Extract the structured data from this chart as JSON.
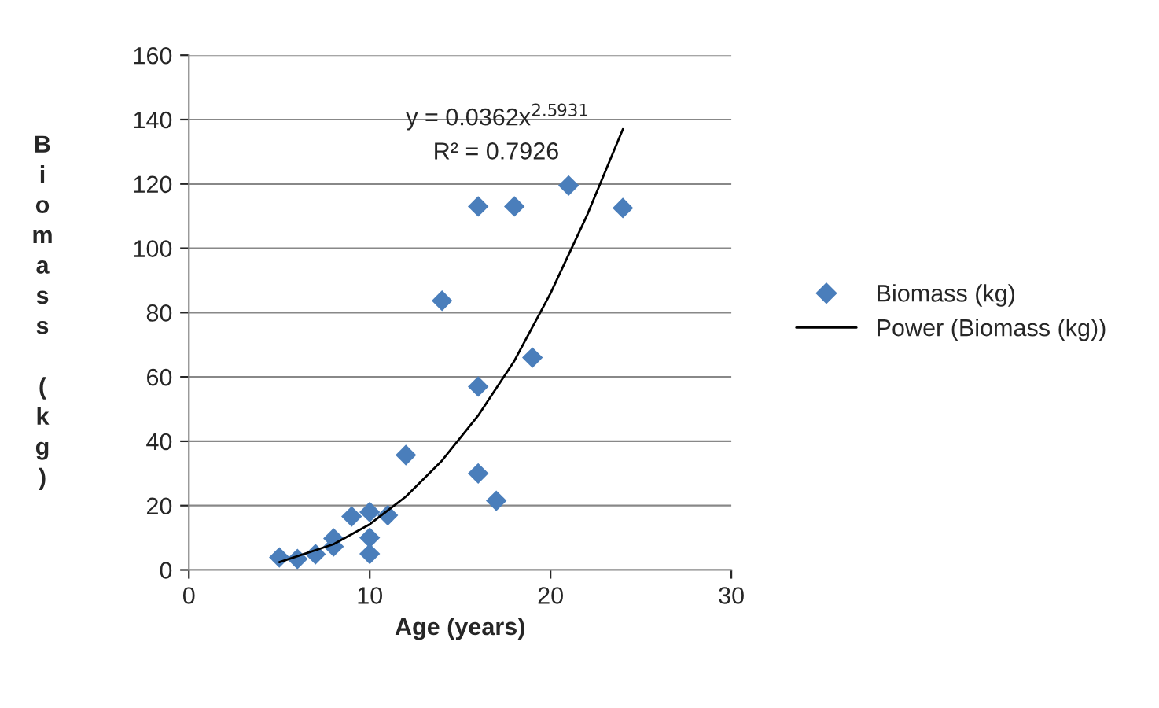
{
  "chart_data": {
    "type": "scatter",
    "xlabel": "Age (years)",
    "ylabel": "Biomass (kg)",
    "xlim": [
      0,
      30
    ],
    "xticks": [
      0,
      10,
      20,
      30
    ],
    "ylim": [
      0,
      160
    ],
    "yticks": [
      0,
      20,
      40,
      60,
      80,
      100,
      120,
      140,
      160
    ],
    "grid": "y",
    "legend": "right",
    "marker": "diamond",
    "annotations": [
      "y = 0.0362x$^{2.5931}$",
      "R² = 0.7926"
    ],
    "series": [
      {
        "name": "Biomass (kg)",
        "color": "#4a7ebb",
        "x": [
          5,
          6,
          7,
          8,
          8,
          9,
          10,
          10,
          10,
          11,
          12,
          14,
          16,
          16,
          16,
          17,
          18,
          19,
          21,
          24
        ],
        "values": [
          3.9,
          3.4,
          4.9,
          7.3,
          9.8,
          16.6,
          18,
          10,
          5,
          17,
          35.7,
          83.7,
          113,
          57,
          30,
          21.5,
          113,
          66,
          119.5,
          112.5
        ]
      },
      {
        "name": "Power (Biomass (kg))",
        "type": "line",
        "color": "#000000",
        "marker": "none",
        "x": [
          5,
          8,
          10,
          12,
          14,
          16,
          18,
          20,
          22,
          24
        ],
        "values": [
          2.4,
          8,
          14.2,
          22.8,
          34,
          48,
          65,
          86,
          110,
          137
        ]
      }
    ]
  }
}
